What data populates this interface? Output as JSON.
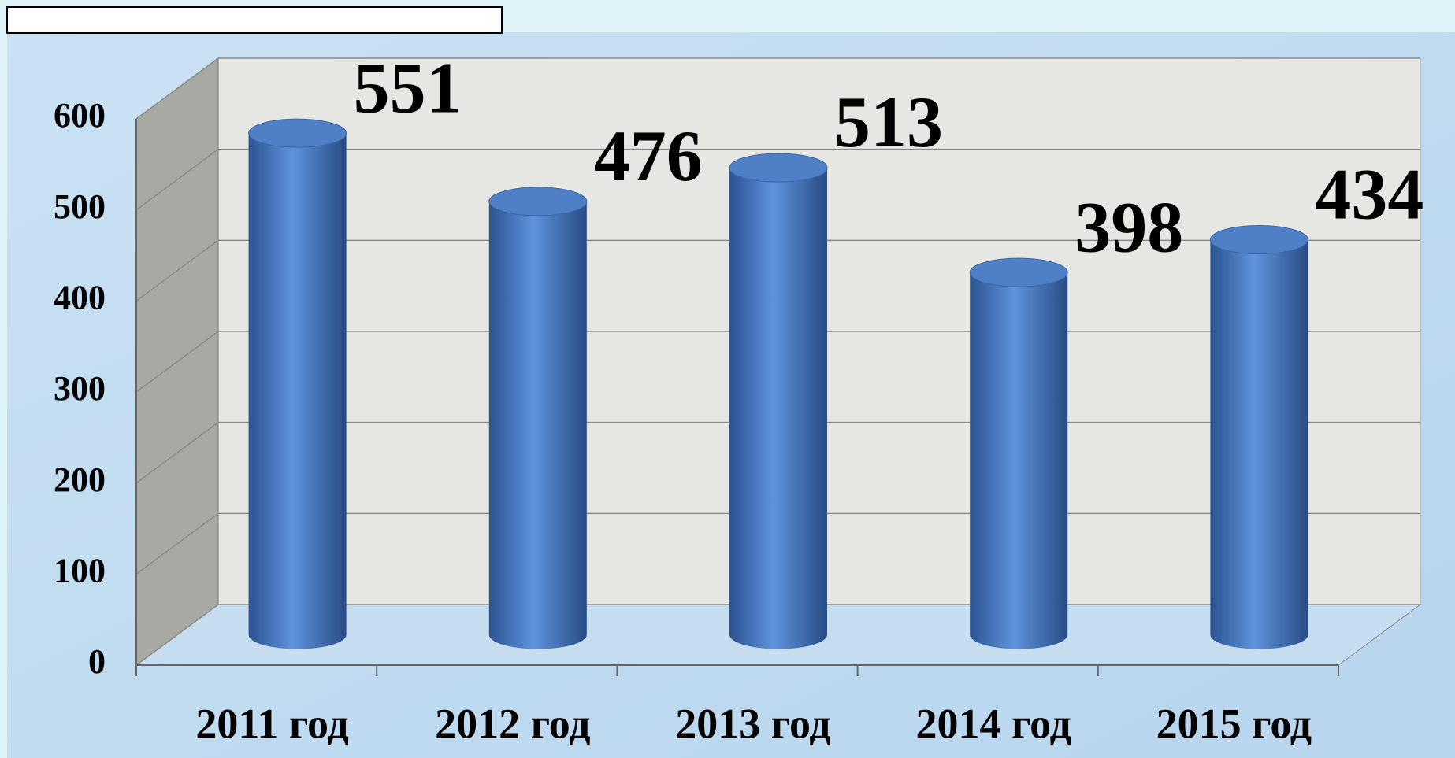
{
  "chart_data": {
    "type": "bar3d",
    "categories": [
      "2011 год",
      "2012 год",
      "2013 год",
      "2014 год",
      "2015 год"
    ],
    "values": [
      551,
      476,
      513,
      398,
      434
    ],
    "color": "#4a7cc4",
    "ylim": [
      0,
      600
    ],
    "yticks": [
      0,
      100,
      200,
      300,
      400,
      500,
      600
    ],
    "grid": true
  }
}
